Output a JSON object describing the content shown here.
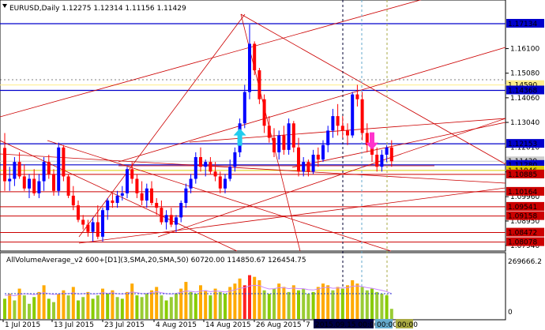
{
  "header": {
    "symbol_line": "EURUSD,Daily  1.12275 1.12314 1.11156 1.11429"
  },
  "price_axis": {
    "ticks": [
      "1.16100",
      "1.15080",
      "1.14060",
      "1.13040",
      "1.12010",
      "1.10990",
      "1.09960",
      "1.08950",
      "1.07940"
    ]
  },
  "price_levels": [
    {
      "label": "1.17134",
      "color": "#0000cc",
      "style": "solid"
    },
    {
      "label": "1.14590",
      "color": "#ffee88",
      "style": "solid"
    },
    {
      "label": "1.14368",
      "color": "#0000cc",
      "style": "solid"
    },
    {
      "label": "1.12153",
      "color": "#0000cc",
      "style": "solid"
    },
    {
      "label": "1.11429",
      "color": "#cccccc",
      "style": "solid"
    },
    {
      "label": "1.11280",
      "color": "#0000cc",
      "style": "solid"
    },
    {
      "label": "1.11046",
      "color": "#ddcc00",
      "style": "solid"
    },
    {
      "label": "1.10885",
      "color": "#cc0000",
      "style": "solid"
    },
    {
      "label": "1.10164",
      "color": "#cc0000",
      "style": "solid"
    },
    {
      "label": "1.09541",
      "color": "#cc0000",
      "style": "solid"
    },
    {
      "label": "1.09158",
      "color": "#cc0000",
      "style": "solid"
    },
    {
      "label": "1.08472",
      "color": "#cc0000",
      "style": "solid"
    },
    {
      "label": "1.08078",
      "color": "#cc0000",
      "style": "solid"
    }
  ],
  "candles": [
    {
      "o": 1.1198,
      "h": 1.126,
      "l": 1.102,
      "c": 1.106
    },
    {
      "o": 1.106,
      "h": 1.112,
      "l": 1.102,
      "c": 1.107
    },
    {
      "o": 1.107,
      "h": 1.116,
      "l": 1.104,
      "c": 1.114
    },
    {
      "o": 1.114,
      "h": 1.118,
      "l": 1.107,
      "c": 1.108
    },
    {
      "o": 1.108,
      "h": 1.113,
      "l": 1.102,
      "c": 1.103
    },
    {
      "o": 1.103,
      "h": 1.109,
      "l": 1.099,
      "c": 1.107
    },
    {
      "o": 1.107,
      "h": 1.111,
      "l": 1.1,
      "c": 1.101
    },
    {
      "o": 1.101,
      "h": 1.109,
      "l": 1.099,
      "c": 1.106
    },
    {
      "o": 1.106,
      "h": 1.116,
      "l": 1.102,
      "c": 1.114
    },
    {
      "o": 1.114,
      "h": 1.117,
      "l": 1.107,
      "c": 1.109
    },
    {
      "o": 1.109,
      "h": 1.111,
      "l": 1.1,
      "c": 1.102
    },
    {
      "o": 1.102,
      "h": 1.122,
      "l": 1.1,
      "c": 1.12
    },
    {
      "o": 1.12,
      "h": 1.121,
      "l": 1.106,
      "c": 1.108
    },
    {
      "o": 1.108,
      "h": 1.109,
      "l": 1.099,
      "c": 1.1
    },
    {
      "o": 1.1,
      "h": 1.104,
      "l": 1.094,
      "c": 1.096
    },
    {
      "o": 1.096,
      "h": 1.098,
      "l": 1.089,
      "c": 1.09
    },
    {
      "o": 1.09,
      "h": 1.092,
      "l": 1.086,
      "c": 1.088
    },
    {
      "o": 1.088,
      "h": 1.09,
      "l": 1.083,
      "c": 1.085
    },
    {
      "o": 1.085,
      "h": 1.091,
      "l": 1.081,
      "c": 1.089
    },
    {
      "o": 1.089,
      "h": 1.096,
      "l": 1.082,
      "c": 1.083
    },
    {
      "o": 1.083,
      "h": 1.095,
      "l": 1.081,
      "c": 1.094
    },
    {
      "o": 1.094,
      "h": 1.099,
      "l": 1.09,
      "c": 1.098
    },
    {
      "o": 1.098,
      "h": 1.101,
      "l": 1.095,
      "c": 1.097
    },
    {
      "o": 1.097,
      "h": 1.102,
      "l": 1.095,
      "c": 1.1
    },
    {
      "o": 1.1,
      "h": 1.104,
      "l": 1.098,
      "c": 1.101
    },
    {
      "o": 1.101,
      "h": 1.112,
      "l": 1.099,
      "c": 1.111
    },
    {
      "o": 1.111,
      "h": 1.114,
      "l": 1.105,
      "c": 1.107
    },
    {
      "o": 1.107,
      "h": 1.109,
      "l": 1.099,
      "c": 1.101
    },
    {
      "o": 1.101,
      "h": 1.106,
      "l": 1.096,
      "c": 1.098
    },
    {
      "o": 1.098,
      "h": 1.105,
      "l": 1.095,
      "c": 1.103
    },
    {
      "o": 1.103,
      "h": 1.106,
      "l": 1.096,
      "c": 1.097
    },
    {
      "o": 1.097,
      "h": 1.099,
      "l": 1.092,
      "c": 1.095
    },
    {
      "o": 1.095,
      "h": 1.098,
      "l": 1.088,
      "c": 1.089
    },
    {
      "o": 1.089,
      "h": 1.094,
      "l": 1.086,
      "c": 1.092
    },
    {
      "o": 1.092,
      "h": 1.095,
      "l": 1.087,
      "c": 1.088
    },
    {
      "o": 1.088,
      "h": 1.092,
      "l": 1.085,
      "c": 1.091
    },
    {
      "o": 1.091,
      "h": 1.098,
      "l": 1.089,
      "c": 1.097
    },
    {
      "o": 1.097,
      "h": 1.105,
      "l": 1.095,
      "c": 1.103
    },
    {
      "o": 1.103,
      "h": 1.109,
      "l": 1.101,
      "c": 1.107
    },
    {
      "o": 1.107,
      "h": 1.118,
      "l": 1.105,
      "c": 1.116
    },
    {
      "o": 1.116,
      "h": 1.12,
      "l": 1.11,
      "c": 1.112
    },
    {
      "o": 1.112,
      "h": 1.115,
      "l": 1.108,
      "c": 1.114
    },
    {
      "o": 1.114,
      "h": 1.116,
      "l": 1.109,
      "c": 1.11
    },
    {
      "o": 1.11,
      "h": 1.114,
      "l": 1.106,
      "c": 1.108
    },
    {
      "o": 1.108,
      "h": 1.11,
      "l": 1.101,
      "c": 1.103
    },
    {
      "o": 1.103,
      "h": 1.109,
      "l": 1.101,
      "c": 1.107
    },
    {
      "o": 1.107,
      "h": 1.115,
      "l": 1.106,
      "c": 1.112
    },
    {
      "o": 1.112,
      "h": 1.12,
      "l": 1.11,
      "c": 1.118
    },
    {
      "o": 1.118,
      "h": 1.132,
      "l": 1.116,
      "c": 1.13
    },
    {
      "o": 1.13,
      "h": 1.146,
      "l": 1.128,
      "c": 1.143
    },
    {
      "o": 1.143,
      "h": 1.171,
      "l": 1.14,
      "c": 1.163
    },
    {
      "o": 1.163,
      "h": 1.164,
      "l": 1.15,
      "c": 1.152
    },
    {
      "o": 1.152,
      "h": 1.153,
      "l": 1.138,
      "c": 1.14
    },
    {
      "o": 1.14,
      "h": 1.142,
      "l": 1.126,
      "c": 1.129
    },
    {
      "o": 1.129,
      "h": 1.133,
      "l": 1.122,
      "c": 1.124
    },
    {
      "o": 1.124,
      "h": 1.128,
      "l": 1.116,
      "c": 1.118
    },
    {
      "o": 1.118,
      "h": 1.127,
      "l": 1.115,
      "c": 1.125
    },
    {
      "o": 1.125,
      "h": 1.129,
      "l": 1.117,
      "c": 1.119
    },
    {
      "o": 1.119,
      "h": 1.132,
      "l": 1.117,
      "c": 1.13
    },
    {
      "o": 1.13,
      "h": 1.131,
      "l": 1.118,
      "c": 1.12
    },
    {
      "o": 1.12,
      "h": 1.124,
      "l": 1.108,
      "c": 1.11
    },
    {
      "o": 1.11,
      "h": 1.116,
      "l": 1.108,
      "c": 1.114
    },
    {
      "o": 1.114,
      "h": 1.115,
      "l": 1.108,
      "c": 1.11
    },
    {
      "o": 1.11,
      "h": 1.119,
      "l": 1.109,
      "c": 1.117
    },
    {
      "o": 1.117,
      "h": 1.12,
      "l": 1.112,
      "c": 1.115
    },
    {
      "o": 1.115,
      "h": 1.123,
      "l": 1.114,
      "c": 1.121
    },
    {
      "o": 1.121,
      "h": 1.129,
      "l": 1.118,
      "c": 1.127
    },
    {
      "o": 1.127,
      "h": 1.136,
      "l": 1.124,
      "c": 1.133
    },
    {
      "o": 1.133,
      "h": 1.138,
      "l": 1.125,
      "c": 1.129
    },
    {
      "o": 1.129,
      "h": 1.133,
      "l": 1.124,
      "c": 1.127
    },
    {
      "o": 1.127,
      "h": 1.13,
      "l": 1.121,
      "c": 1.125
    },
    {
      "o": 1.125,
      "h": 1.143,
      "l": 1.124,
      "c": 1.142
    },
    {
      "o": 1.142,
      "h": 1.146,
      "l": 1.137,
      "c": 1.14
    },
    {
      "o": 1.14,
      "h": 1.143,
      "l": 1.123,
      "c": 1.126
    },
    {
      "o": 1.126,
      "h": 1.13,
      "l": 1.118,
      "c": 1.121
    },
    {
      "o": 1.121,
      "h": 1.125,
      "l": 1.114,
      "c": 1.117
    },
    {
      "o": 1.117,
      "h": 1.12,
      "l": 1.11,
      "c": 1.112
    },
    {
      "o": 1.112,
      "h": 1.119,
      "l": 1.11,
      "c": 1.117
    },
    {
      "o": 1.117,
      "h": 1.121,
      "l": 1.114,
      "c": 1.12
    },
    {
      "o": 1.12,
      "h": 1.123,
      "l": 1.112,
      "c": 1.1143
    }
  ],
  "markers": [
    {
      "type": "buy-arrow",
      "index": 48,
      "price": 1.124,
      "color": "#22ccee"
    },
    {
      "type": "sell-arrow",
      "index": 75,
      "price": 1.123,
      "color": "#ff33cc"
    }
  ],
  "indicator": {
    "label": "AllVolumeAverage_v2 600+[D1](3,SMA,20,SMA,50) 60720.00 114850.67 126454.75",
    "axis_max": "269666.2",
    "axis_min": "0",
    "volumes": [
      120,
      150,
      110,
      180,
      140,
      90,
      130,
      160,
      200,
      120,
      100,
      150,
      170,
      140,
      190,
      110,
      130,
      160,
      120,
      140,
      180,
      150,
      170,
      130,
      120,
      160,
      210,
      140,
      130,
      150,
      170,
      190,
      140,
      110,
      130,
      150,
      180,
      220,
      160,
      150,
      200,
      170,
      140,
      180,
      160,
      150,
      190,
      210,
      240,
      200,
      260,
      250,
      230,
      170,
      150,
      180,
      210,
      190,
      160,
      200,
      170,
      180,
      150,
      160,
      190,
      210,
      200,
      170,
      190,
      180,
      200,
      230,
      210,
      190,
      170,
      180,
      160,
      150,
      140,
      60
    ],
    "line_avg": [
      140,
      142,
      138,
      146,
      150,
      148,
      144,
      150,
      156,
      150,
      146,
      148,
      152,
      150,
      155,
      148,
      150,
      152,
      148,
      150,
      156,
      152,
      155,
      150,
      148,
      152,
      160,
      156,
      150,
      152,
      156,
      162,
      156,
      150,
      148,
      152,
      158,
      166,
      164,
      160,
      166,
      168,
      162,
      166,
      164,
      160,
      166,
      172,
      182,
      186,
      196,
      200,
      198,
      186,
      178,
      180,
      186,
      186,
      180,
      184,
      180,
      180,
      174,
      172,
      178,
      186,
      188,
      182,
      184,
      184,
      186,
      194,
      196,
      192,
      186,
      182,
      176,
      170,
      162,
      150
    ],
    "line_ma2": [
      150,
      150,
      150,
      150,
      150,
      150,
      150,
      150,
      150,
      150,
      150,
      150,
      150,
      150,
      150,
      150,
      150,
      150,
      150,
      150,
      150,
      150,
      150,
      150,
      150,
      150,
      150,
      150,
      150,
      150,
      150,
      150,
      150,
      150,
      150,
      150,
      150,
      150,
      150,
      150,
      150,
      150,
      150,
      150,
      150,
      150,
      150,
      150,
      150,
      150,
      150,
      150,
      150,
      150,
      150,
      150,
      150,
      150,
      150,
      150,
      150,
      150,
      150,
      150,
      150,
      150,
      150,
      150,
      150,
      150,
      150,
      150,
      150,
      150,
      150,
      150,
      150,
      150,
      150,
      150
    ]
  },
  "time_axis": {
    "labels": [
      "1 Jul 2015",
      "13 Jul 2015",
      "23 Jul 2015",
      "4 Aug 2015",
      "14 Aug 2015",
      "26 Aug 2015",
      "7",
      "2015.09.15 00:00",
      "00:00",
      "00:00"
    ]
  },
  "colors": {
    "bull": "#0000ff",
    "bear": "#ff0000",
    "resistance": "#0000cc",
    "support": "#cc0000",
    "trend": "#cc0000"
  }
}
